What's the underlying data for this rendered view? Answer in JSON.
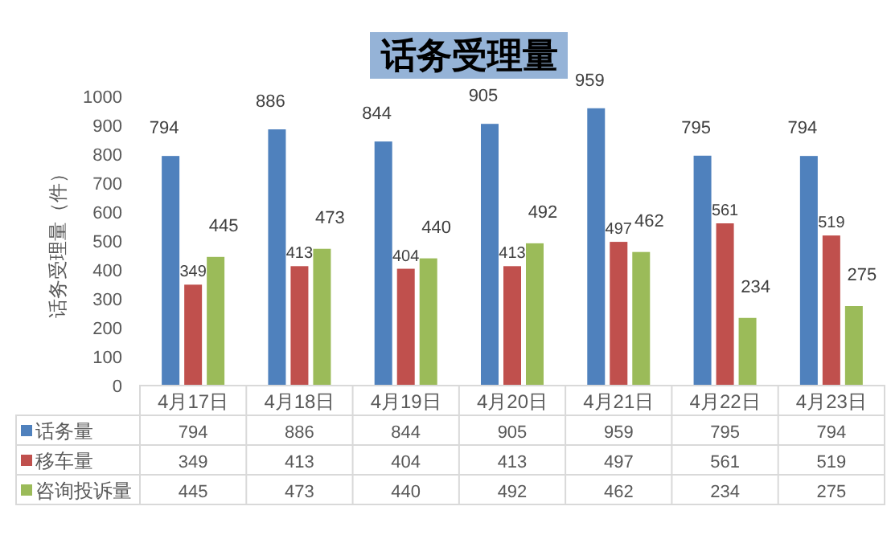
{
  "chart_data": {
    "type": "bar",
    "title": "话务受理量",
    "ylabel": "话务受理量（件）",
    "categories": [
      "4月17日",
      "4月18日",
      "4月19日",
      "4月20日",
      "4月21日",
      "4月22日",
      "4月23日"
    ],
    "series": [
      {
        "name": "话务量",
        "color": "#4f81bd",
        "values": [
          794,
          886,
          844,
          905,
          959,
          795,
          794
        ],
        "value_labels": [
          "794",
          "886",
          "844",
          "905",
          "959",
          "795",
          "794"
        ]
      },
      {
        "name": "移车量",
        "color": "#c0504d",
        "values": [
          349,
          413,
          404,
          413,
          497,
          561,
          519
        ],
        "value_labels": [
          "349",
          "413",
          "404",
          "413",
          "497",
          "561",
          "519"
        ]
      },
      {
        "name": "咨询投诉量",
        "color": "#9bbb59",
        "values": [
          445,
          473,
          440,
          492,
          462,
          234,
          275
        ],
        "value_labels": [
          "445",
          "473",
          "440",
          "492",
          "462",
          "234",
          "275"
        ]
      }
    ],
    "annotations": [
      "794",
      "886",
      "844",
      "905",
      "959",
      "795",
      "794",
      "349",
      "413",
      "404",
      "413",
      "497",
      "561",
      "519",
      "445",
      "473",
      "440",
      "492",
      "462",
      "234",
      "275"
    ],
    "ylim": [
      0,
      1000
    ],
    "yticks": [
      0,
      100,
      200,
      300,
      400,
      500,
      600,
      700,
      800,
      900,
      1000
    ],
    "legend": "bottom",
    "grid": false
  }
}
